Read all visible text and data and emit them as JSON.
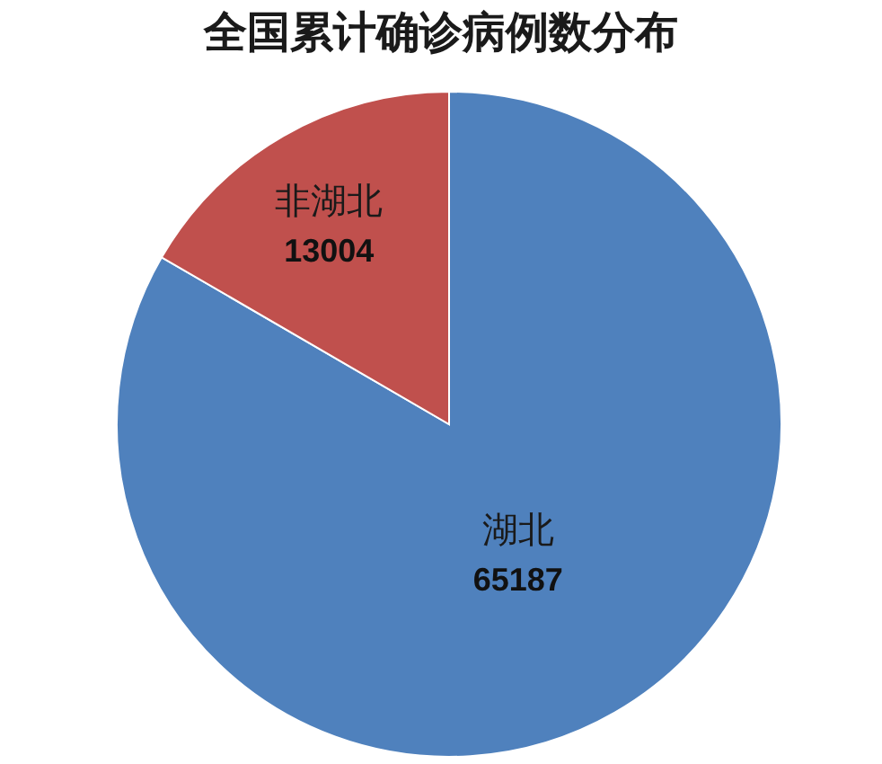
{
  "chart_data": {
    "type": "pie",
    "title": "全国累计确诊病例数分布",
    "categories": [
      "湖北",
      "非湖北"
    ],
    "values": [
      65187,
      13004
    ],
    "colors": [
      "#4f81bd",
      "#c0504d"
    ],
    "data_labels": true
  }
}
